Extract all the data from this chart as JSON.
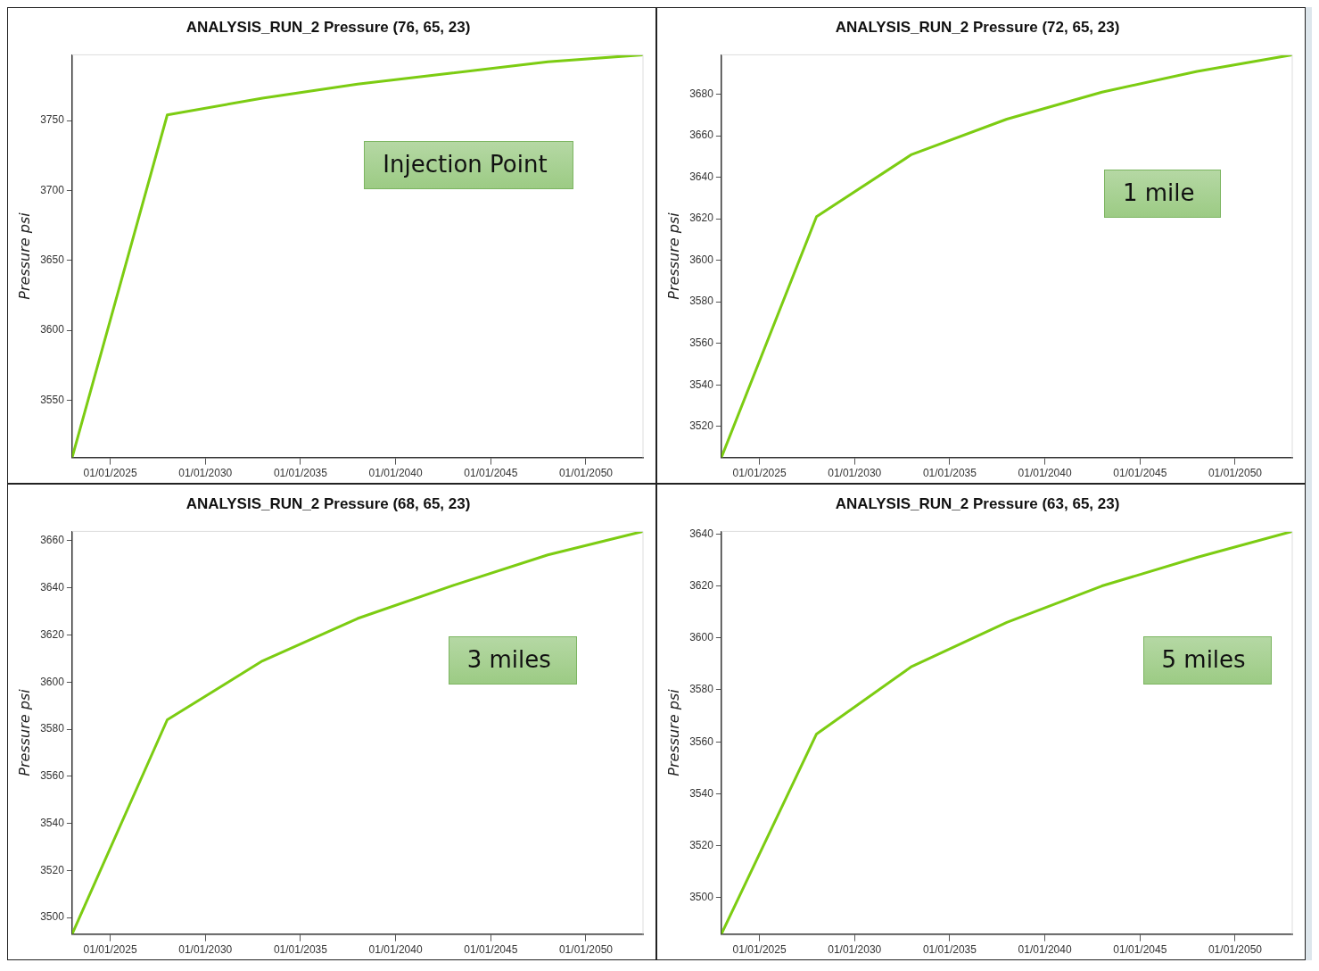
{
  "chart_data": [
    {
      "type": "line",
      "title": "ANALYSIS_RUN_2 Pressure (76, 65, 23)",
      "ylabel": "Pressure psi",
      "annotations": [
        "Injection Point"
      ],
      "x": [
        "2023-01-01",
        "2028-01-01",
        "2033-01-01",
        "2038-01-01",
        "2043-01-01",
        "2048-01-01",
        "2053-01-01"
      ],
      "series": [
        {
          "color": "#7ccc12",
          "values": [
            3509,
            3754,
            3766,
            3776,
            3784,
            3792,
            3797
          ]
        }
      ],
      "xlim": [
        "2023-01-01",
        "2053-01-01"
      ],
      "xticks": [
        {
          "value": "2025-01-01",
          "label": "01/01/2025"
        },
        {
          "value": "2030-01-01",
          "label": "01/01/2030"
        },
        {
          "value": "2035-01-01",
          "label": "01/01/2035"
        },
        {
          "value": "2040-01-01",
          "label": "01/01/2040"
        },
        {
          "value": "2045-01-01",
          "label": "01/01/2045"
        },
        {
          "value": "2050-01-01",
          "label": "01/01/2050"
        }
      ],
      "ylim": [
        3509,
        3797
      ],
      "yticks": [
        3550,
        3600,
        3650,
        3700,
        3750
      ]
    },
    {
      "type": "line",
      "title": "ANALYSIS_RUN_2 Pressure (72, 65, 23)",
      "ylabel": "Pressure psi",
      "annotations": [
        "1 mile"
      ],
      "x": [
        "2023-01-01",
        "2028-01-01",
        "2033-01-01",
        "2038-01-01",
        "2043-01-01",
        "2048-01-01",
        "2053-01-01"
      ],
      "series": [
        {
          "color": "#7ccc12",
          "values": [
            3505,
            3621,
            3651,
            3668,
            3681,
            3691,
            3699
          ]
        }
      ],
      "xlim": [
        "2023-01-01",
        "2053-01-01"
      ],
      "xticks": [
        {
          "value": "2025-01-01",
          "label": "01/01/2025"
        },
        {
          "value": "2030-01-01",
          "label": "01/01/2030"
        },
        {
          "value": "2035-01-01",
          "label": "01/01/2035"
        },
        {
          "value": "2040-01-01",
          "label": "01/01/2040"
        },
        {
          "value": "2045-01-01",
          "label": "01/01/2045"
        },
        {
          "value": "2050-01-01",
          "label": "01/01/2050"
        }
      ],
      "ylim": [
        3505,
        3699
      ],
      "yticks": [
        3520,
        3540,
        3560,
        3580,
        3600,
        3620,
        3640,
        3660,
        3680
      ]
    },
    {
      "type": "line",
      "title": "ANALYSIS_RUN_2 Pressure (68, 65, 23)",
      "ylabel": "Pressure psi",
      "annotations": [
        "3 miles"
      ],
      "x": [
        "2023-01-01",
        "2028-01-01",
        "2033-01-01",
        "2038-01-01",
        "2043-01-01",
        "2048-01-01",
        "2053-01-01"
      ],
      "series": [
        {
          "color": "#7ccc12",
          "values": [
            3493,
            3584,
            3609,
            3627,
            3641,
            3654,
            3664
          ]
        }
      ],
      "xlim": [
        "2023-01-01",
        "2053-01-01"
      ],
      "xticks": [
        {
          "value": "2025-01-01",
          "label": "01/01/2025"
        },
        {
          "value": "2030-01-01",
          "label": "01/01/2030"
        },
        {
          "value": "2035-01-01",
          "label": "01/01/2035"
        },
        {
          "value": "2040-01-01",
          "label": "01/01/2040"
        },
        {
          "value": "2045-01-01",
          "label": "01/01/2045"
        },
        {
          "value": "2050-01-01",
          "label": "01/01/2050"
        }
      ],
      "ylim": [
        3493,
        3664
      ],
      "yticks": [
        3500,
        3520,
        3540,
        3560,
        3580,
        3600,
        3620,
        3640,
        3660
      ]
    },
    {
      "type": "line",
      "title": "ANALYSIS_RUN_2 Pressure (63, 65, 23)",
      "ylabel": "Pressure psi",
      "annotations": [
        "5 miles"
      ],
      "x": [
        "2023-01-01",
        "2028-01-01",
        "2033-01-01",
        "2038-01-01",
        "2043-01-01",
        "2048-01-01",
        "2053-01-01"
      ],
      "series": [
        {
          "color": "#7ccc12",
          "values": [
            3486,
            3563,
            3589,
            3606,
            3620,
            3631,
            3641
          ]
        }
      ],
      "xlim": [
        "2023-01-01",
        "2053-01-01"
      ],
      "xticks": [
        {
          "value": "2025-01-01",
          "label": "01/01/2025"
        },
        {
          "value": "2030-01-01",
          "label": "01/01/2030"
        },
        {
          "value": "2035-01-01",
          "label": "01/01/2035"
        },
        {
          "value": "2040-01-01",
          "label": "01/01/2040"
        },
        {
          "value": "2045-01-01",
          "label": "01/01/2045"
        },
        {
          "value": "2050-01-01",
          "label": "01/01/2050"
        }
      ],
      "ylim": [
        3486,
        3641
      ],
      "yticks": [
        3500,
        3520,
        3540,
        3560,
        3580,
        3600,
        3620,
        3640
      ]
    }
  ]
}
